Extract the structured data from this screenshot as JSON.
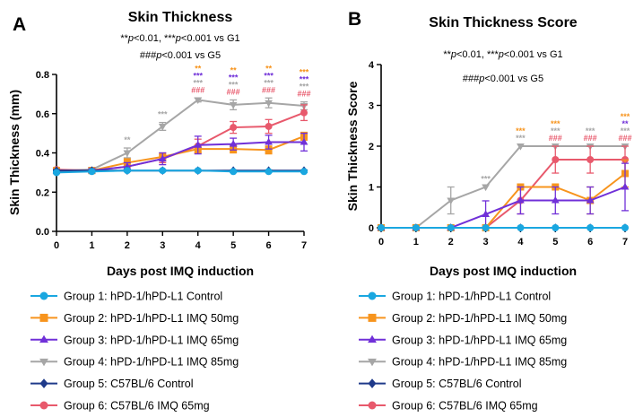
{
  "panels": [
    {
      "letter": "A",
      "title": "Skin Thickness",
      "annotation_line1_a": "**",
      "annotation_line1_b": "p",
      "annotation_line1_c": "<0.01, ***",
      "annotation_line1_d": "p",
      "annotation_line1_e": "<0.001 vs G1",
      "annotation_line2_a": "###",
      "annotation_line2_b": "p",
      "annotation_line2_c": "<0.001 vs G5"
    },
    {
      "letter": "B",
      "title": "Skin Thickness Score",
      "annotation_line1_a": "**",
      "annotation_line1_b": "p",
      "annotation_line1_c": "<0.01, ***",
      "annotation_line1_d": "p",
      "annotation_line1_e": "<0.001 vs G1",
      "annotation_line2_a": "###",
      "annotation_line2_b": "p",
      "annotation_line2_c": "<0.001 vs G5"
    }
  ],
  "legend_labels": [
    "Group 1: hPD-1/hPD-L1 Control",
    "Group 2: hPD-1/hPD-L1 IMQ 50mg",
    "Group 3: hPD-1/hPD-L1 IMQ 65mg",
    "Group 4: hPD-1/hPD-L1 IMQ 85mg",
    "Group 5: C57BL/6 Control",
    "Group 6: C57BL/6 IMQ 65mg"
  ],
  "chart_data": [
    {
      "type": "line",
      "title": "Skin Thickness",
      "xlabel": "Days post IMQ induction",
      "ylabel": "Skin Thickness (mm)",
      "x": [
        0,
        1,
        2,
        3,
        4,
        5,
        6,
        7
      ],
      "xlim": [
        0,
        7
      ],
      "ylim": [
        0,
        0.8
      ],
      "yticks": [
        0,
        0.2,
        0.4,
        0.6,
        0.8
      ],
      "ytick_labels": [
        "0.0",
        "0.2",
        "0.4",
        "0.6",
        "0.8"
      ],
      "series": [
        {
          "name": "Group 1: hPD-1/hPD-L1 Control",
          "color": "#1aa7e0",
          "marker": "circle",
          "values": [
            0.3,
            0.305,
            0.31,
            0.31,
            0.31,
            0.305,
            0.305,
            0.305
          ],
          "errors": [
            0.005,
            0.005,
            0.005,
            0.005,
            0.005,
            0.005,
            0.005,
            0.005
          ]
        },
        {
          "name": "Group 2: hPD-1/hPD-L1 IMQ 50mg",
          "color": "#f7941d",
          "marker": "square",
          "values": [
            0.31,
            0.31,
            0.35,
            0.38,
            0.42,
            0.42,
            0.415,
            0.485
          ],
          "errors": [
            0.005,
            0.01,
            0.02,
            0.02,
            0.02,
            0.02,
            0.02,
            0.02
          ]
        },
        {
          "name": "Group 3: hPD-1/hPD-L1 IMQ 65mg",
          "color": "#7030d8",
          "marker": "triangle-up",
          "values": [
            0.31,
            0.31,
            0.33,
            0.37,
            0.44,
            0.445,
            0.455,
            0.455
          ],
          "errors": [
            0.005,
            0.01,
            0.02,
            0.03,
            0.045,
            0.03,
            0.035,
            0.045
          ]
        },
        {
          "name": "Group 4: hPD-1/hPD-L1 IMQ 85mg",
          "color": "#a6a6a6",
          "marker": "triangle-down",
          "values": [
            0.31,
            0.315,
            0.4,
            0.535,
            0.67,
            0.645,
            0.655,
            0.64
          ],
          "errors": [
            0.005,
            0.01,
            0.025,
            0.02,
            0.01,
            0.025,
            0.025,
            0.02
          ]
        },
        {
          "name": "Group 5: C57BL/6 Control",
          "color": "#1f3a8a",
          "marker": "diamond",
          "values": [
            0.31,
            0.31,
            0.31,
            0.31,
            0.31,
            0.31,
            0.31,
            0.31
          ],
          "errors": [
            0.003,
            0.003,
            0.003,
            0.003,
            0.003,
            0.003,
            0.003,
            0.003
          ]
        },
        {
          "name": "Group 6: C57BL/6 IMQ 65mg",
          "color": "#e8596c",
          "marker": "circle",
          "values": [
            0.315,
            0.31,
            0.33,
            0.37,
            0.435,
            0.53,
            0.535,
            0.605
          ],
          "errors": [
            0.005,
            0.01,
            0.02,
            0.02,
            0.035,
            0.03,
            0.035,
            0.04
          ]
        }
      ],
      "significance": [
        {
          "x": 2,
          "rows": [
            {
              "text": "**",
              "color": "#a6a6a6"
            }
          ]
        },
        {
          "x": 3,
          "rows": [
            {
              "text": "***",
              "color": "#a6a6a6"
            }
          ]
        },
        {
          "x": 4,
          "rows": [
            {
              "text": "**",
              "color": "#f7941d"
            },
            {
              "text": "***",
              "color": "#7030d8"
            },
            {
              "text": "***",
              "color": "#a6a6a6"
            },
            {
              "text": "###",
              "color": "#e8596c"
            }
          ]
        },
        {
          "x": 5,
          "rows": [
            {
              "text": "**",
              "color": "#f7941d"
            },
            {
              "text": "***",
              "color": "#7030d8"
            },
            {
              "text": "***",
              "color": "#a6a6a6"
            },
            {
              "text": "###",
              "color": "#e8596c"
            }
          ]
        },
        {
          "x": 6,
          "rows": [
            {
              "text": "**",
              "color": "#f7941d"
            },
            {
              "text": "***",
              "color": "#7030d8"
            },
            {
              "text": "***",
              "color": "#a6a6a6"
            },
            {
              "text": "###",
              "color": "#e8596c"
            }
          ]
        },
        {
          "x": 7,
          "rows": [
            {
              "text": "***",
              "color": "#f7941d"
            },
            {
              "text": "***",
              "color": "#7030d8"
            },
            {
              "text": "***",
              "color": "#a6a6a6"
            },
            {
              "text": "###",
              "color": "#e8596c"
            }
          ]
        }
      ]
    },
    {
      "type": "line",
      "title": "Skin Thickness Score",
      "xlabel": "Days post IMQ induction",
      "ylabel": "Skin Thickness Score",
      "x": [
        0,
        1,
        2,
        3,
        4,
        5,
        6,
        7
      ],
      "xlim": [
        0,
        7
      ],
      "ylim": [
        0,
        4
      ],
      "yticks": [
        0,
        1,
        2,
        3,
        4
      ],
      "ytick_labels": [
        "0",
        "1",
        "2",
        "3",
        "4"
      ],
      "series": [
        {
          "name": "Group 1: hPD-1/hPD-L1 Control",
          "color": "#1aa7e0",
          "marker": "circle",
          "values": [
            0,
            0,
            0,
            0,
            0,
            0,
            0,
            0
          ],
          "errors": [
            0,
            0,
            0,
            0,
            0,
            0,
            0,
            0
          ]
        },
        {
          "name": "Group 2: hPD-1/hPD-L1 IMQ 50mg",
          "color": "#f7941d",
          "marker": "square",
          "values": [
            0,
            0,
            0,
            0,
            1,
            1,
            0.67,
            1.33
          ],
          "errors": [
            0,
            0,
            0,
            0,
            0,
            0,
            0.33,
            0.33
          ]
        },
        {
          "name": "Group 3: hPD-1/hPD-L1 IMQ 65mg",
          "color": "#7030d8",
          "marker": "triangle-up",
          "values": [
            0,
            0,
            0,
            0.33,
            0.67,
            0.67,
            0.67,
            1.0
          ],
          "errors": [
            0,
            0,
            0,
            0.33,
            0.33,
            0.33,
            0.33,
            0.58
          ]
        },
        {
          "name": "Group 4: hPD-1/hPD-L1 IMQ 85mg",
          "color": "#a6a6a6",
          "marker": "triangle-down",
          "values": [
            0,
            0,
            0.67,
            1.0,
            2.0,
            2.0,
            2.0,
            2.0
          ],
          "errors": [
            0,
            0,
            0.33,
            0,
            0,
            0,
            0,
            0
          ]
        },
        {
          "name": "Group 5: C57BL/6 Control",
          "color": "#1f3a8a",
          "marker": "diamond",
          "values": [
            0,
            0,
            0,
            0,
            0,
            0,
            0,
            0
          ],
          "errors": [
            0,
            0,
            0,
            0,
            0,
            0,
            0,
            0
          ]
        },
        {
          "name": "Group 6: C57BL/6 IMQ 65mg",
          "color": "#e8596c",
          "marker": "circle",
          "values": [
            0,
            0,
            0,
            0,
            0.67,
            1.67,
            1.67,
            1.67
          ],
          "errors": [
            0,
            0,
            0,
            0,
            0.33,
            0.33,
            0.33,
            0.33
          ]
        }
      ],
      "significance": [
        {
          "x": 3,
          "rows": [
            {
              "text": "***",
              "color": "#a6a6a6"
            }
          ]
        },
        {
          "x": 4,
          "rows": [
            {
              "text": "***",
              "color": "#f7941d"
            },
            {
              "text": "***",
              "color": "#a6a6a6"
            }
          ]
        },
        {
          "x": 5,
          "rows": [
            {
              "text": "***",
              "color": "#f7941d"
            },
            {
              "text": "***",
              "color": "#a6a6a6"
            },
            {
              "text": "###",
              "color": "#e8596c"
            }
          ]
        },
        {
          "x": 6,
          "rows": [
            {
              "text": "***",
              "color": "#a6a6a6"
            },
            {
              "text": "###",
              "color": "#e8596c"
            }
          ]
        },
        {
          "x": 7,
          "rows": [
            {
              "text": "***",
              "color": "#f7941d"
            },
            {
              "text": "**",
              "color": "#7030d8"
            },
            {
              "text": "***",
              "color": "#a6a6a6"
            },
            {
              "text": "###",
              "color": "#e8596c"
            }
          ]
        }
      ]
    }
  ]
}
